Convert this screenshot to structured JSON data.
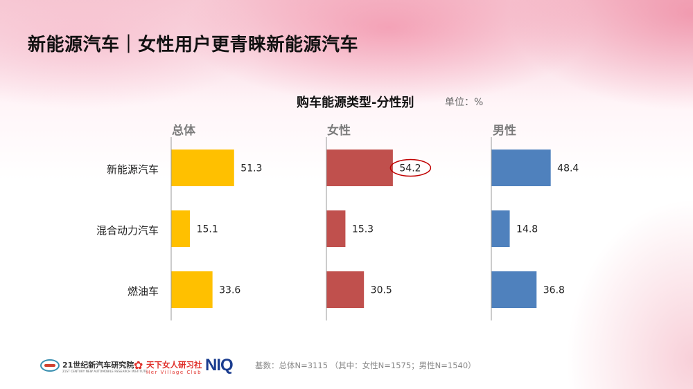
{
  "slide": {
    "title": "新能源汽车｜女性用户更青睐新能源汽车",
    "footer_note": "基数：总体N=3115 （其中：女性N=1575；男性N=1540）"
  },
  "logos": {
    "logo1_text": "21世纪新汽车研究院",
    "logo1_sub": "21ST CENTURY NEW AUTOMOBILE RESEARCH INSTITUTE",
    "logo2_text": "天下女人研习社",
    "logo2_sub": "Her Village Club",
    "logo3_text": "NIQ"
  },
  "chart_data": {
    "type": "bar",
    "orientation": "horizontal",
    "title": "购车能源类型-分性别",
    "unit": "单位：%",
    "categories": [
      "新能源汽车",
      "混合动力汽车",
      "燃油车"
    ],
    "series": [
      {
        "name": "总体",
        "values": [
          51.3,
          15.1,
          33.6
        ],
        "color": "#FFC000"
      },
      {
        "name": "女性",
        "values": [
          54.2,
          15.3,
          30.5
        ],
        "color": "#C0504D"
      },
      {
        "name": "男性",
        "values": [
          48.4,
          14.8,
          36.8
        ],
        "color": "#4F81BD"
      }
    ],
    "highlight": {
      "series": "女性",
      "category": "新能源汽车",
      "color": "#C00000"
    }
  }
}
